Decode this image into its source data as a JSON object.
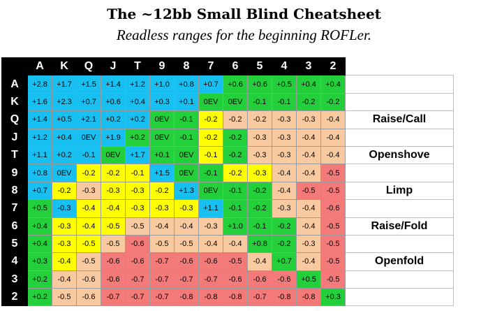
{
  "title": "The ~12bb Small Blind Cheatsheet",
  "subtitle": "Readless ranges for the beginning ROFLer.",
  "ranks": [
    "A",
    "K",
    "Q",
    "J",
    "T",
    "9",
    "8",
    "7",
    "6",
    "5",
    "4",
    "3",
    "2"
  ],
  "colors": {
    "raise_call": "#17c0f0",
    "openshove": "#23cf3a",
    "limp": "#ffff00",
    "raise_fold": "#f9c9a0",
    "openfold": "#f47a7a"
  },
  "legend": [
    {
      "row": 2,
      "label": "Raise/Call",
      "color": "b"
    },
    {
      "row": 4,
      "label": "Openshove",
      "color": "g"
    },
    {
      "row": 6,
      "label": "Limp",
      "color": "y"
    },
    {
      "row": 8,
      "label": "Raise/Fold",
      "color": "p"
    },
    {
      "row": 10,
      "label": "Openfold",
      "color": "r"
    }
  ],
  "rows": [
    {
      "values": [
        "+2.8",
        "+1.7",
        "+1.5",
        "+1.4",
        "+1.2",
        "+1.0",
        "+0.8",
        "+0.7",
        "+0.6",
        "+0.6",
        "+0.5",
        "+0.4",
        "+0.4"
      ],
      "colors": [
        "b",
        "b",
        "b",
        "b",
        "b",
        "b",
        "b",
        "b",
        "g",
        "g",
        "g",
        "g",
        "g"
      ]
    },
    {
      "values": [
        "+1.6",
        "+2.3",
        "+0.7",
        "+0.6",
        "+0.4",
        "+0.3",
        "+0.1",
        "0EV",
        "0EV",
        "-0.1",
        "-0.1",
        "-0.2",
        "-0.2"
      ],
      "colors": [
        "b",
        "b",
        "b",
        "b",
        "b",
        "b",
        "b",
        "g",
        "g",
        "g",
        "g",
        "g",
        "g"
      ]
    },
    {
      "values": [
        "+1.4",
        "+0.5",
        "+2.1",
        "+0.2",
        "+0.2",
        "0EV",
        "-0.1",
        "-0.2",
        "-0.2",
        "-0.2",
        "-0.3",
        "-0.3",
        "-0.4"
      ],
      "colors": [
        "b",
        "b",
        "b",
        "b",
        "b",
        "g",
        "g",
        "y",
        "p",
        "p",
        "p",
        "p",
        "p"
      ]
    },
    {
      "values": [
        "+1.2",
        "+0.4",
        "0EV",
        "+1.9",
        "+0.2",
        "0EV",
        "-0.1",
        "-0.2",
        "-0.2",
        "-0.3",
        "-0.3",
        "-0.4",
        "-0.4"
      ],
      "colors": [
        "b",
        "b",
        "b",
        "b",
        "g",
        "g",
        "g",
        "y",
        "g",
        "p",
        "p",
        "p",
        "p"
      ]
    },
    {
      "values": [
        "+1.1",
        "+0.2",
        "-0.1",
        "0EV",
        "+1.7",
        "+0.1",
        "0EV",
        "-0.1",
        "-0.2",
        "-0.3",
        "-0.3",
        "-0.4",
        "-0.4"
      ],
      "colors": [
        "b",
        "b",
        "b",
        "g",
        "b",
        "g",
        "g",
        "y",
        "g",
        "p",
        "p",
        "p",
        "p"
      ]
    },
    {
      "values": [
        "+0.8",
        "0EV",
        "-0.2",
        "-0.2",
        "-0.1",
        "+1.5",
        "0EV",
        "-0.1",
        "-0.2",
        "-0.3",
        "-0.4",
        "-0.4",
        "-0.5"
      ],
      "colors": [
        "b",
        "b",
        "y",
        "y",
        "y",
        "b",
        "g",
        "g",
        "y",
        "y",
        "p",
        "p",
        "r"
      ]
    },
    {
      "values": [
        "+0.7",
        "-0.2",
        "-0.3",
        "-0.3",
        "-0.3",
        "-0.2",
        "+1.3",
        "0EV",
        "-0.1",
        "-0.2",
        "-0.4",
        "-0.5",
        "-0.5"
      ],
      "colors": [
        "b",
        "y",
        "p",
        "y",
        "y",
        "y",
        "b",
        "g",
        "g",
        "g",
        "p",
        "r",
        "r"
      ]
    },
    {
      "values": [
        "+0.5",
        "-0.3",
        "-0.4",
        "-0.4",
        "-0.3",
        "-0.3",
        "-0.3",
        "+1.1",
        "-0.1",
        "-0.2",
        "-0.3",
        "-0.4",
        "-0.6"
      ],
      "colors": [
        "g",
        "b",
        "y",
        "y",
        "y",
        "y",
        "y",
        "b",
        "g",
        "g",
        "p",
        "p",
        "r"
      ]
    },
    {
      "values": [
        "+0.4",
        "-0.3",
        "-0.4",
        "-0.5",
        "-0.5",
        "-0.4",
        "-0.4",
        "-0.3",
        "+1.0",
        "-0.1",
        "-0.2",
        "-0.4",
        "-0.5"
      ],
      "colors": [
        "g",
        "y",
        "y",
        "y",
        "p",
        "p",
        "p",
        "p",
        "g",
        "g",
        "g",
        "p",
        "r"
      ]
    },
    {
      "values": [
        "+0.4",
        "-0.3",
        "-0.5",
        "-0.5",
        "-0.6",
        "-0.5",
        "-0.5",
        "-0.4",
        "-0.4",
        "+0.8",
        "-0.2",
        "-0.3",
        "-0.5"
      ],
      "colors": [
        "g",
        "y",
        "y",
        "p",
        "r",
        "p",
        "p",
        "p",
        "p",
        "g",
        "g",
        "p",
        "r"
      ]
    },
    {
      "values": [
        "+0.3",
        "-0.4",
        "-0.5",
        "-0.6",
        "-0.6",
        "-0.7",
        "-0.6",
        "-0.6",
        "-0.5",
        "-0.4",
        "+0.7",
        "-0.4",
        "-0.5"
      ],
      "colors": [
        "g",
        "y",
        "p",
        "r",
        "r",
        "r",
        "r",
        "r",
        "r",
        "p",
        "g",
        "p",
        "r"
      ]
    },
    {
      "values": [
        "+0.2",
        "-0.4",
        "-0.6",
        "-0.6",
        "-0.7",
        "-0.7",
        "-0.7",
        "-0.7",
        "-0.6",
        "-0.6",
        "-0.6",
        "+0.5",
        "-0.5"
      ],
      "colors": [
        "g",
        "p",
        "p",
        "r",
        "r",
        "r",
        "r",
        "r",
        "r",
        "r",
        "r",
        "g",
        "r"
      ]
    },
    {
      "values": [
        "+0.2",
        "-0.5",
        "-0.6",
        "-0.7",
        "-0.7",
        "-0.7",
        "-0.8",
        "-0.8",
        "-0.8",
        "-0.7",
        "-0.8",
        "-0.8",
        "+0.3"
      ],
      "colors": [
        "g",
        "p",
        "p",
        "r",
        "r",
        "r",
        "r",
        "r",
        "r",
        "r",
        "r",
        "r",
        "g"
      ]
    }
  ]
}
